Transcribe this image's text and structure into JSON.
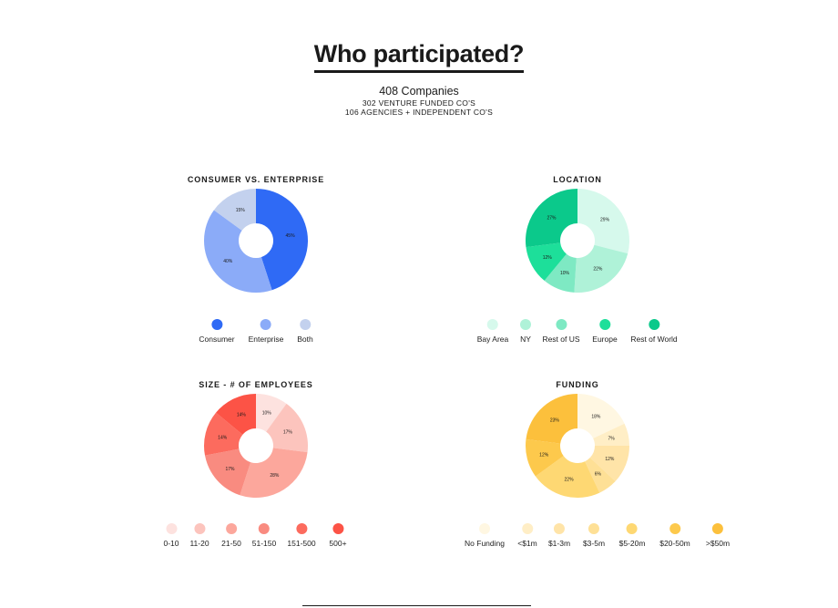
{
  "header": {
    "title": "Who participated?",
    "companies": "408 Companies",
    "venture_line": "302 VENTURE FUNDED CO'S",
    "agency_line": "106 AGENCIES + INDEPENDENT CO'S"
  },
  "chart_data": [
    {
      "type": "pie",
      "title": "CONSUMER VS. ENTERPRISE",
      "categories": [
        "Consumer",
        "Enterprise",
        "Both"
      ],
      "values": [
        45,
        40,
        15
      ],
      "labels": [
        "45%",
        "40%",
        "15%"
      ],
      "colors": [
        "#2f6af5",
        "#8babf8",
        "#c3d1ee"
      ]
    },
    {
      "type": "pie",
      "title": "LOCATION",
      "categories": [
        "Bay Area",
        "NY",
        "Rest of US",
        "Europe",
        "Rest of World"
      ],
      "values": [
        29,
        22,
        10,
        12,
        27
      ],
      "labels": [
        "29%",
        "22%",
        "10%",
        "12%",
        "27%"
      ],
      "colors": [
        "#d6f9ec",
        "#aff2d8",
        "#7ee9c3",
        "#1ddf9a",
        "#0bc98b"
      ]
    },
    {
      "type": "pie",
      "title": "SIZE - # OF EMPLOYEES",
      "categories": [
        "0-10",
        "11-20",
        "21-50",
        "51-150",
        "151-500",
        "500+"
      ],
      "values": [
        10,
        17,
        28,
        17,
        14,
        14
      ],
      "labels": [
        "10%",
        "17%",
        "28%",
        "17%",
        "14%",
        "14%"
      ],
      "colors": [
        "#fde2df",
        "#fcc4bd",
        "#fca79c",
        "#f98b80",
        "#fc6b5e",
        "#fc5346"
      ]
    },
    {
      "type": "pie",
      "title": "FUNDING",
      "categories": [
        "No Funding",
        "<$1m",
        "$1-3m",
        "$3-5m",
        "$5-20m",
        "$20-50m",
        ">$50m"
      ],
      "values": [
        18,
        7,
        12,
        6,
        22,
        12,
        23
      ],
      "labels": [
        "18%",
        "7%",
        "12%",
        "6%",
        "22%",
        "12%",
        "23%"
      ],
      "colors": [
        "#fff7e2",
        "#ffeec6",
        "#ffe4a8",
        "#fee096",
        "#fed873",
        "#fdc94c",
        "#fcc03c"
      ]
    }
  ]
}
